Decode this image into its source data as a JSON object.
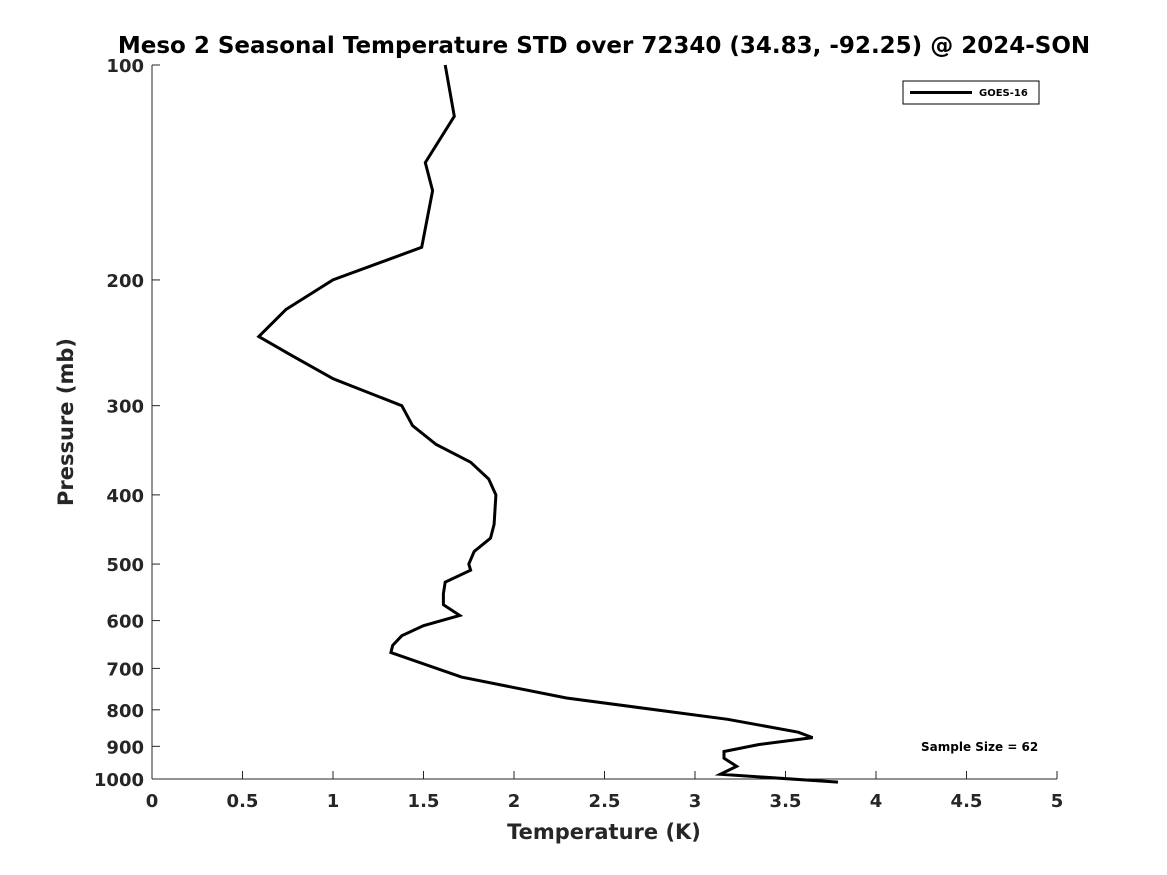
{
  "chart_data": {
    "type": "line",
    "title": "Meso 2 Seasonal Temperature STD over 72340 (34.83, -92.25) @ 2024-SON",
    "xlabel": "Temperature (K)",
    "ylabel": "Pressure (mb)",
    "xlim": [
      0,
      5
    ],
    "ylim": [
      100,
      1000
    ],
    "y_scale": "log",
    "y_reversed": true,
    "x_ticks": [
      0,
      0.5,
      1,
      1.5,
      2,
      2.5,
      3,
      3.5,
      4,
      4.5,
      5
    ],
    "x_tick_labels": [
      "0",
      "0.5",
      "1",
      "1.5",
      "2",
      "2.5",
      "3",
      "3.5",
      "4",
      "4.5",
      "5"
    ],
    "y_ticks": [
      100,
      200,
      300,
      400,
      500,
      600,
      700,
      800,
      900,
      1000
    ],
    "y_tick_labels": [
      "100",
      "200",
      "300",
      "400",
      "500",
      "600",
      "700",
      "800",
      "900",
      "1000"
    ],
    "grid": false,
    "legend_position": "top-right",
    "annotation": "Sample Size = 62",
    "series": [
      {
        "name": "GOES-16",
        "color": "#000000",
        "x": [
          1.62,
          1.67,
          1.51,
          1.55,
          1.49,
          1.0,
          0.74,
          0.59,
          0.77,
          1.0,
          1.38,
          1.44,
          1.57,
          1.76,
          1.86,
          1.9,
          1.89,
          1.87,
          1.78,
          1.75,
          1.76,
          1.62,
          1.61,
          1.61,
          1.7,
          1.5,
          1.38,
          1.33,
          1.32,
          1.71,
          2.29,
          3.18,
          3.57,
          3.65,
          3.35,
          3.16,
          3.16,
          3.23,
          3.14,
          3.79
        ],
        "y": [
          100,
          118,
          137,
          150,
          180,
          200,
          220,
          240,
          255,
          275,
          300,
          320,
          340,
          360,
          380,
          400,
          440,
          460,
          480,
          500,
          510,
          530,
          550,
          570,
          590,
          610,
          630,
          650,
          665,
          720,
          770,
          825,
          860,
          875,
          895,
          915,
          935,
          960,
          985,
          1010
        ]
      }
    ]
  }
}
